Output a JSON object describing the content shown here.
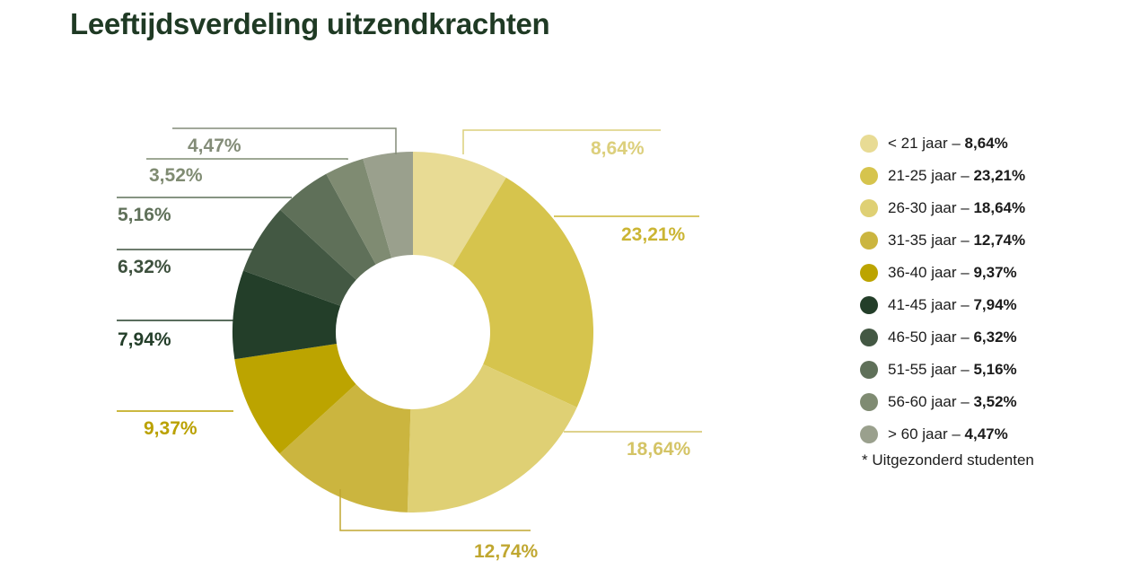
{
  "chart_data": {
    "type": "pie",
    "title": "Leeftijdsverdeling uitzendkrachten",
    "categories": [
      "< 21 jaar",
      "21-25 jaar",
      "26-30 jaar",
      "31-35 jaar",
      "36-40 jaar",
      "41-45 jaar",
      "46-50 jaar",
      "51-55 jaar",
      "56-60 jaar",
      "> 60 jaar"
    ],
    "values": [
      8.64,
      23.21,
      18.64,
      12.74,
      9.37,
      7.94,
      6.32,
      5.16,
      3.52,
      4.47
    ],
    "value_labels": [
      "8,64%",
      "23,21%",
      "18,64%",
      "12,74%",
      "9,37%",
      "7,94%",
      "6,32%",
      "5,16%",
      "3,52%",
      "4,47%"
    ],
    "colors": [
      "#e8db94",
      "#d6c44d",
      "#dfd074",
      "#cbb53f",
      "#bca400",
      "#233e29",
      "#435843",
      "#5f7059",
      "#7f8b72",
      "#9aa08d"
    ],
    "label_colors": [
      "#dccf7c",
      "#cbb533",
      "#d4c466",
      "#c0a730",
      "#baa100",
      "#233e29",
      "#3d503d",
      "#5f7059",
      "#7f8b72",
      "#838c78"
    ],
    "chart_subtype": "donut",
    "legend_position": "right",
    "legend_separator": " – ",
    "footnote": "* Uitgezonderd studenten"
  }
}
